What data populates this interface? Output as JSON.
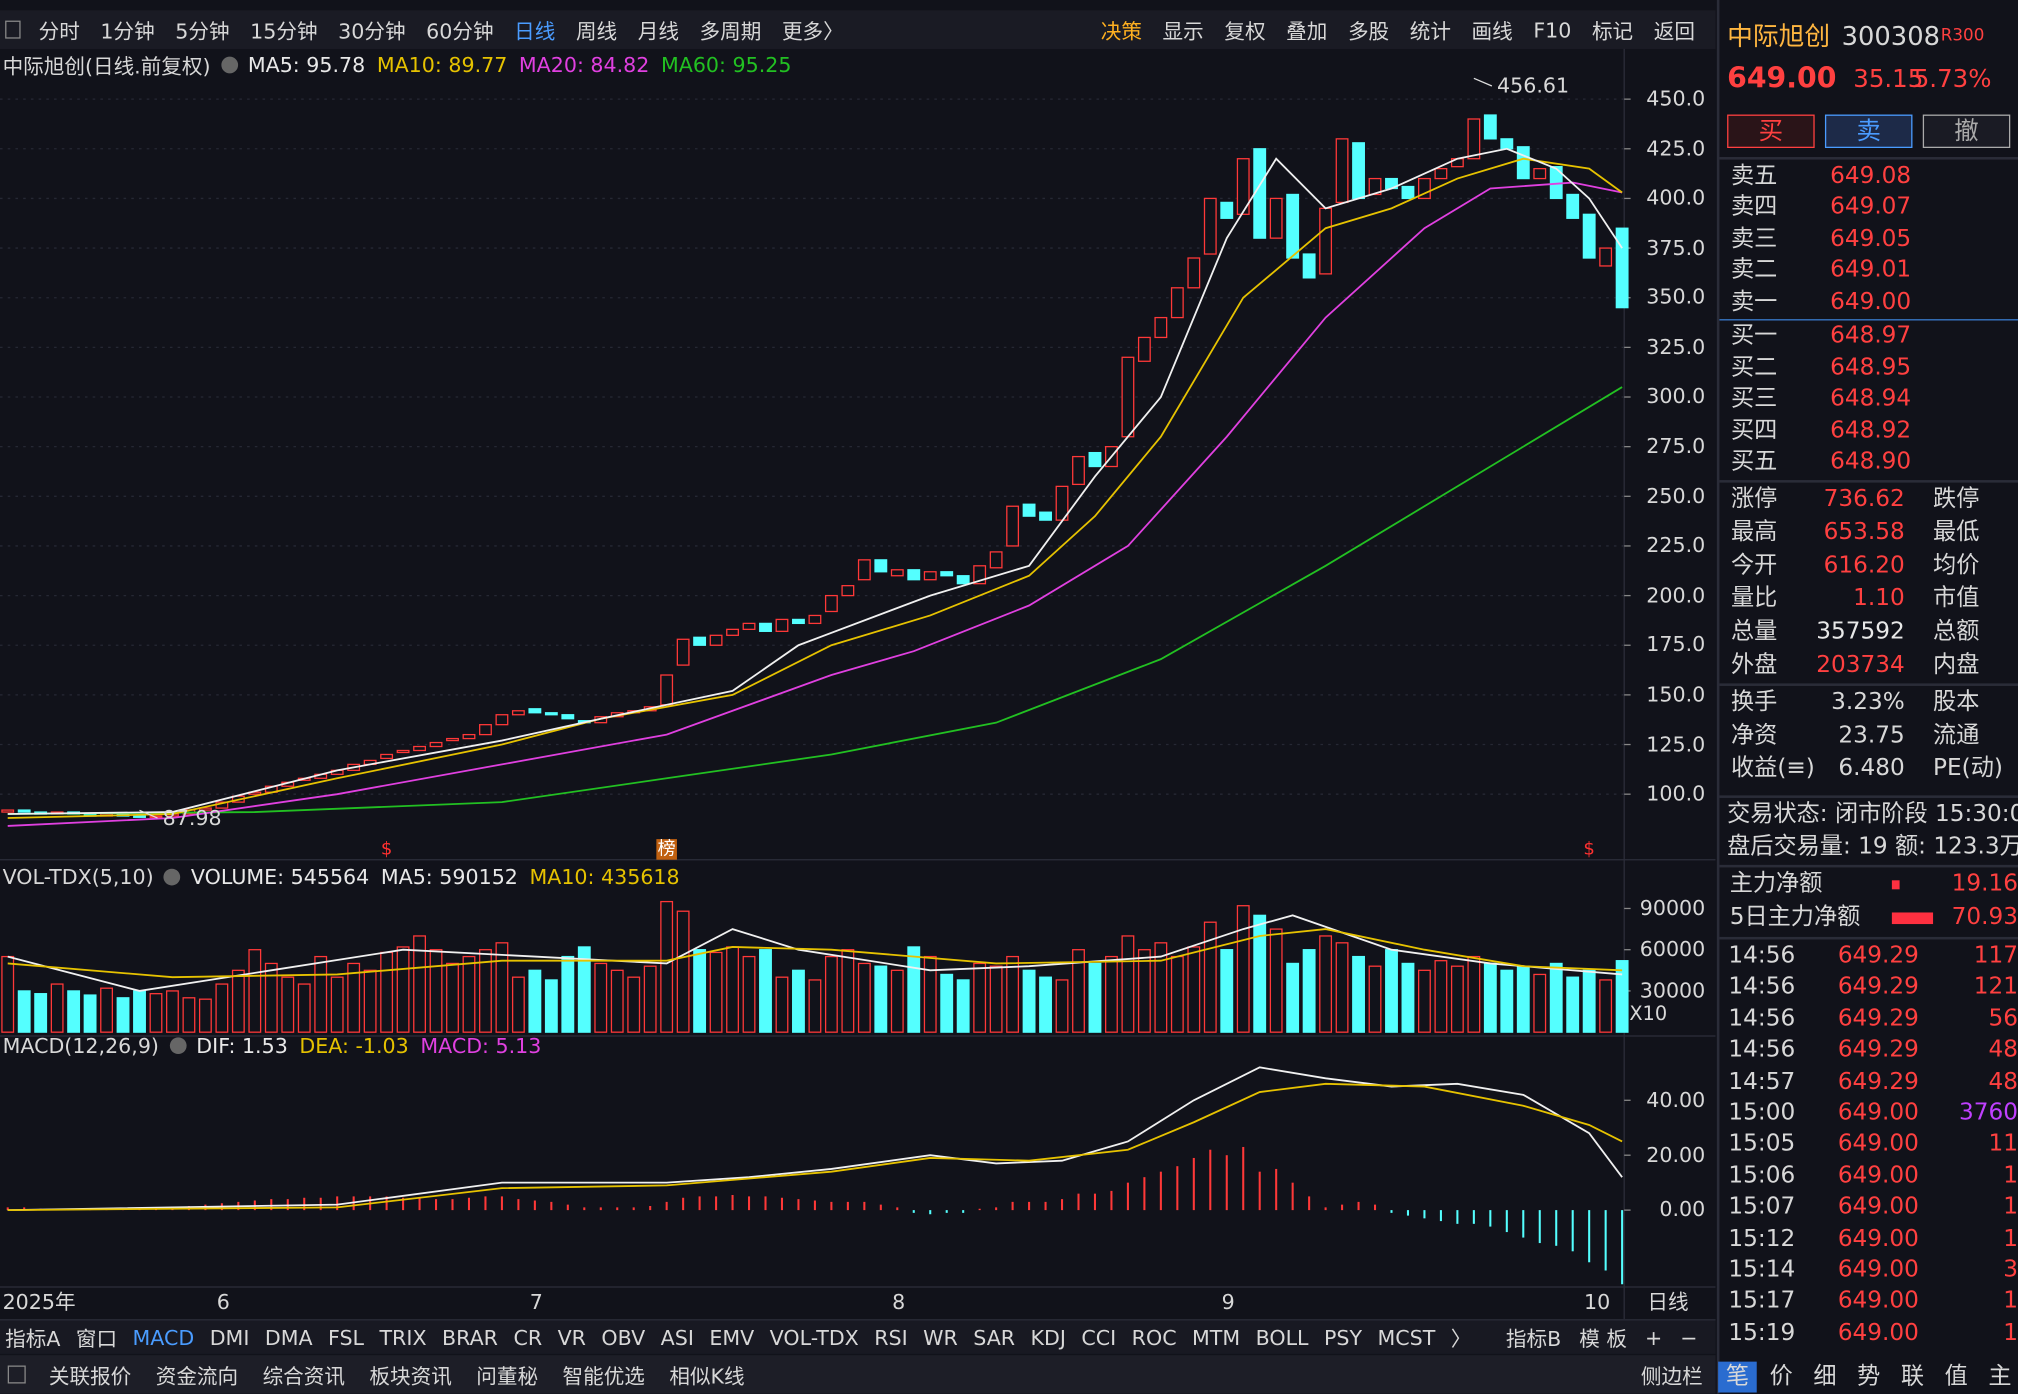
{
  "toolbar": {
    "periods": [
      "分时",
      "1分钟",
      "5分钟",
      "15分钟",
      "30分钟",
      "60分钟",
      "日线",
      "周线",
      "月线",
      "多周期",
      "更多〉"
    ],
    "tools": [
      "决策",
      "显示",
      "复权",
      "叠加",
      "多股",
      "统计",
      "画线",
      "F10",
      "标记",
      "返回"
    ]
  },
  "price_chart": {
    "title": "中际旭创(日线.前复权)",
    "indicators": [
      {
        "label": "MA5: 95.78",
        "color": "#e8e8e8"
      },
      {
        "label": "MA10: 89.77",
        "color": "#e6c200"
      },
      {
        "label": "MA20: 84.82",
        "color": "#e040e0"
      },
      {
        "label": "MA60: 95.25",
        "color": "#22c022"
      }
    ],
    "ylim": [
      67,
      474
    ],
    "yticks": [
      {
        "value": 100,
        "label": "100.0"
      },
      {
        "value": 125,
        "label": "125.0"
      },
      {
        "value": 150,
        "label": "150.0"
      },
      {
        "value": 175,
        "label": "175.0"
      },
      {
        "value": 200,
        "label": "200.0"
      },
      {
        "value": 225,
        "label": "225.0"
      },
      {
        "value": 250,
        "label": "250.0"
      },
      {
        "value": 275,
        "label": "275.0"
      },
      {
        "value": 300,
        "label": "300.0"
      },
      {
        "value": 325,
        "label": "325.0"
      },
      {
        "value": 350,
        "label": "350.0"
      },
      {
        "value": 375,
        "label": "375.0"
      },
      {
        "value": 400,
        "label": "400.0"
      },
      {
        "value": 425,
        "label": "425.0"
      },
      {
        "value": 450,
        "label": "450.0"
      }
    ],
    "xticks": [
      {
        "value": 0,
        "label": "2025年"
      },
      {
        "value": 13,
        "label": "6"
      },
      {
        "value": 32,
        "label": "7"
      },
      {
        "value": 54,
        "label": "8"
      },
      {
        "value": 74,
        "label": "9"
      },
      {
        "value": 96,
        "label": "10"
      }
    ],
    "period_label": "日线",
    "up_color": "#ff3838",
    "down_color": "#54ffff",
    "candles": {
      "open": [
        91,
        92,
        91,
        90,
        91,
        90,
        89,
        90,
        89,
        88.5,
        89,
        90,
        92,
        93,
        96,
        100,
        101,
        104,
        107,
        108,
        110,
        112,
        115,
        118,
        121,
        122,
        124,
        127,
        128,
        130,
        135,
        140,
        143,
        141,
        140,
        137,
        136,
        139,
        141,
        142,
        145,
        165,
        179,
        175,
        180,
        183,
        186,
        182,
        188,
        186,
        192,
        200,
        208,
        218,
        210,
        213,
        208,
        212,
        210,
        206,
        214,
        225,
        246,
        242,
        238,
        256,
        272,
        265,
        280,
        318,
        330,
        340,
        355,
        372,
        398,
        392,
        425,
        380,
        402,
        372,
        362,
        398,
        428,
        402,
        410,
        406,
        400,
        410,
        416,
        420,
        442,
        430,
        426,
        410,
        416,
        402,
        392,
        366,
        385
      ],
      "close": [
        92,
        91,
        90,
        91,
        90,
        89,
        90,
        89,
        88.5,
        89,
        90,
        92,
        93,
        96,
        99,
        101,
        104,
        106,
        108,
        110,
        112,
        115,
        117,
        120,
        122,
        124,
        126,
        128,
        130,
        135,
        140,
        142,
        141,
        140,
        138,
        136,
        139,
        141,
        142,
        144,
        160,
        178,
        175,
        180,
        183,
        186,
        182,
        188,
        186,
        190,
        200,
        205,
        218,
        212,
        213,
        208,
        212,
        210,
        206,
        215,
        222,
        245,
        240,
        238,
        255,
        270,
        265,
        275,
        320,
        330,
        340,
        355,
        370,
        400,
        390,
        420,
        380,
        400,
        370,
        360,
        395,
        430,
        400,
        410,
        405,
        400,
        410,
        415,
        420,
        440,
        430,
        425,
        410,
        415,
        400,
        390,
        370,
        375,
        345
      ]
    },
    "ma_lines": [
      {
        "color": "#22c022",
        "x": [
          0,
          15,
          30,
          40,
          50,
          60,
          70,
          80,
          90,
          98
        ],
        "values": [
          90,
          91,
          96,
          108,
          120,
          136,
          168,
          215,
          265,
          305
        ]
      },
      {
        "color": "#e040e0",
        "x": [
          0,
          10,
          20,
          30,
          40,
          50,
          55,
          62,
          68,
          74,
          80,
          86,
          90,
          95,
          98
        ],
        "values": [
          84,
          88,
          100,
          115,
          130,
          160,
          172,
          195,
          225,
          280,
          340,
          385,
          405,
          408,
          403
        ]
      },
      {
        "color": "#e6c200",
        "x": [
          0,
          10,
          20,
          30,
          36,
          44,
          50,
          56,
          62,
          66,
          70,
          75,
          80,
          84,
          88,
          92,
          96,
          98
        ],
        "values": [
          88,
          90,
          108,
          125,
          138,
          150,
          175,
          190,
          210,
          240,
          280,
          350,
          385,
          395,
          410,
          420,
          415,
          403
        ]
      },
      {
        "color": "#f0f0f0",
        "x": [
          0,
          10,
          20,
          30,
          36,
          44,
          48,
          56,
          62,
          66,
          70,
          74,
          77,
          80,
          84,
          88,
          91,
          94,
          96,
          98
        ],
        "values": [
          90,
          91,
          112,
          127,
          138,
          152,
          175,
          200,
          215,
          260,
          300,
          380,
          420,
          395,
          405,
          420,
          425,
          415,
          400,
          375
        ]
      }
    ],
    "annotations": [
      {
        "x": 89,
        "value": 456.61
      },
      {
        "x": 8,
        "value": 87.98
      }
    ],
    "markers": [
      {
        "x": 23,
        "label": "$"
      },
      {
        "x": 40,
        "label": "榜"
      },
      {
        "x": 96,
        "label": "$"
      }
    ]
  },
  "volume_chart": {
    "title": "VOL-TDX(5,10)",
    "indicators": [
      {
        "label": "VOLUME: 545564",
        "color": "#e8e8e8"
      },
      {
        "label": "MA5: 590152",
        "color": "#e8e8e8"
      },
      {
        "label": "MA10: 435618",
        "color": "#e6c200"
      }
    ],
    "ylim": [
      0,
      103000
    ],
    "yticks": [
      90000,
      60000,
      30000
    ],
    "multiplier": "X10",
    "values": [
      55000,
      30000,
      28000,
      35000,
      30000,
      27000,
      32000,
      25000,
      30000,
      28000,
      30000,
      25000,
      24000,
      35000,
      45000,
      60000,
      50000,
      40000,
      35000,
      55000,
      40000,
      50000,
      45000,
      58000,
      62000,
      70000,
      60000,
      50000,
      55000,
      60000,
      65000,
      40000,
      45000,
      38000,
      55000,
      62000,
      50000,
      45000,
      40000,
      48000,
      95000,
      88000,
      60000,
      58000,
      62000,
      55000,
      60000,
      40000,
      45000,
      38000,
      55000,
      60000,
      50000,
      48000,
      45000,
      62000,
      55000,
      42000,
      38000,
      50000,
      48000,
      55000,
      45000,
      40000,
      38000,
      60000,
      50000,
      55000,
      70000,
      60000,
      65000,
      55000,
      62000,
      80000,
      60000,
      92000,
      85000,
      75000,
      50000,
      60000,
      70000,
      65000,
      55000,
      48000,
      60000,
      50000,
      45000,
      52000,
      48000,
      55000,
      50000,
      45000,
      48000,
      42000,
      50000,
      40000,
      45000,
      38000,
      52000
    ],
    "ma_lines": [
      {
        "color": "#f0f0f0",
        "x": [
          0,
          8,
          16,
          24,
          32,
          40,
          44,
          48,
          56,
          62,
          70,
          75,
          78,
          84,
          90,
          98
        ],
        "values": [
          55000,
          30000,
          45000,
          60000,
          55000,
          50000,
          75000,
          60000,
          45000,
          48000,
          55000,
          75000,
          85000,
          60000,
          50000,
          42000
        ]
      },
      {
        "color": "#e6c200",
        "x": [
          0,
          10,
          20,
          30,
          40,
          44,
          50,
          60,
          70,
          76,
          80,
          86,
          92,
          98
        ],
        "values": [
          50000,
          40000,
          42000,
          52000,
          52000,
          62000,
          60000,
          50000,
          52000,
          70000,
          75000,
          60000,
          48000,
          45000
        ]
      }
    ]
  },
  "macd_chart": {
    "title": "MACD(12,26,9)",
    "indicators": [
      {
        "label": "DIF: 1.53",
        "color": "#e8e8e8"
      },
      {
        "label": "DEA: -1.03",
        "color": "#e6c200"
      },
      {
        "label": "MACD: 5.13",
        "color": "#e040e0"
      }
    ],
    "ylim": [
      -28,
      62
    ],
    "yticks": [
      {
        "value": 40,
        "label": "40.00"
      },
      {
        "value": 20,
        "label": "20.00"
      },
      {
        "value": 0,
        "label": "0.00"
      }
    ],
    "histogram": [
      1,
      1,
      0.5,
      0.5,
      0.3,
      0.2,
      0.3,
      0.5,
      0.6,
      0.8,
      1,
      1.5,
      2,
      2.5,
      3,
      3.5,
      4,
      4,
      4.5,
      4.5,
      5,
      5,
      5,
      5,
      4.5,
      4.5,
      4,
      4,
      4.5,
      5,
      5,
      4,
      3.5,
      3,
      2,
      1,
      1,
      1,
      1,
      1.5,
      3,
      4.5,
      5,
      5,
      5.5,
      5,
      5,
      4.5,
      4,
      3.5,
      3,
      3,
      3,
      2,
      1,
      -1,
      -1.5,
      -1,
      -1,
      0.5,
      1,
      3,
      3,
      3,
      4,
      6,
      6,
      7,
      10,
      12,
      14,
      16,
      19,
      22,
      20,
      23,
      14,
      15,
      10,
      5,
      1,
      2,
      3,
      2,
      -1,
      -2,
      -3,
      -4,
      -5,
      -5,
      -6,
      -8,
      -10,
      -12,
      -13,
      -15,
      -19,
      -22,
      -27
    ],
    "lines": [
      {
        "color": "#f0f0f0",
        "x": [
          0,
          20,
          30,
          40,
          45,
          50,
          56,
          60,
          64,
          68,
          72,
          76,
          80,
          84,
          88,
          92,
          96,
          98
        ],
        "values": [
          0,
          2,
          10,
          10,
          12,
          15,
          20,
          17,
          18,
          25,
          40,
          52,
          48,
          45,
          46,
          42,
          28,
          12
        ]
      },
      {
        "color": "#e6c200",
        "x": [
          0,
          20,
          30,
          40,
          50,
          56,
          62,
          68,
          72,
          76,
          80,
          86,
          92,
          96,
          98
        ],
        "values": [
          0,
          1,
          8,
          9,
          14,
          19,
          18,
          22,
          32,
          43,
          46,
          45,
          38,
          31,
          25
        ]
      }
    ]
  },
  "indicator_tabs": [
    "指标A",
    "窗口",
    "MACD",
    "DMI",
    "DMA",
    "FSL",
    "TRIX",
    "BRAR",
    "CR",
    "VR",
    "OBV",
    "ASI",
    "EMV",
    "VOL-TDX",
    "RSI",
    "WR",
    "SAR",
    "KDJ",
    "CCI",
    "ROC",
    "MTM",
    "BOLL",
    "PSY",
    "MCST",
    "〉"
  ],
  "indicator_tabs_right": [
    "指标B",
    "模 板",
    "+",
    "−"
  ],
  "status_bar": [
    "关联报价",
    "资金流向",
    "综合资讯",
    "板块资讯",
    "问董秘",
    "智能优选",
    "相似K线"
  ],
  "status_bar_right": "侧边栏",
  "quote": {
    "name": "中际旭创",
    "code": "300308",
    "badge": "R300",
    "price": "649.00",
    "change": "35.15",
    "change_pct": "5.73%",
    "buttons": [
      "买",
      "卖",
      "撤"
    ],
    "asks": [
      {
        "label": "卖五",
        "price": "649.08"
      },
      {
        "label": "卖四",
        "price": "649.07"
      },
      {
        "label": "卖三",
        "price": "649.05"
      },
      {
        "label": "卖二",
        "price": "649.01"
      },
      {
        "label": "卖一",
        "price": "649.00"
      }
    ],
    "bids": [
      {
        "label": "买一",
        "price": "648.97"
      },
      {
        "label": "买二",
        "price": "648.95"
      },
      {
        "label": "买三",
        "price": "648.94"
      },
      {
        "label": "买四",
        "price": "648.92"
      },
      {
        "label": "买五",
        "price": "648.90"
      }
    ],
    "stats": [
      {
        "label": "涨停",
        "value": "736.62",
        "color": "#ff4040",
        "label2": "跌停"
      },
      {
        "label": "最高",
        "value": "653.58",
        "color": "#ff4040",
        "label2": "最低"
      },
      {
        "label": "今开",
        "value": "616.20",
        "color": "#ff4040",
        "label2": "均价"
      },
      {
        "label": "量比",
        "value": "1.10",
        "color": "#ff4040",
        "label2": "市值"
      },
      {
        "label": "总量",
        "value": "357592",
        "color": "#e8e8e8",
        "label2": "总额"
      },
      {
        "label": "外盘",
        "value": "203734",
        "color": "#ff4040",
        "label2": "内盘"
      }
    ],
    "stats2": [
      {
        "label": "换手",
        "value": "3.23%",
        "label2": "股本"
      },
      {
        "label": "净资",
        "value": "23.75",
        "label2": "流通"
      },
      {
        "label": "收益(≡)",
        "value": "6.480",
        "label2": "PE(动)"
      }
    ],
    "trade_status": "交易状态: 闭市阶段 15:30:0",
    "after_hours": "盘后交易量: 19  额: 123.3万",
    "main_flow": {
      "label": "主力净额",
      "value": "19.16"
    },
    "main_flow_5d": {
      "label": "5日主力净额",
      "value": "70.93"
    },
    "trades": [
      {
        "time": "14:56",
        "price": "649.29",
        "volume": "117",
        "color": "#ff4040"
      },
      {
        "time": "14:56",
        "price": "649.29",
        "volume": "121",
        "color": "#ff4040"
      },
      {
        "time": "14:56",
        "price": "649.29",
        "volume": "56",
        "color": "#ff4040"
      },
      {
        "time": "14:56",
        "price": "649.29",
        "volume": "48",
        "color": "#ff4040"
      },
      {
        "time": "14:57",
        "price": "649.29",
        "volume": "48",
        "color": "#ff4040"
      },
      {
        "time": "15:00",
        "price": "649.00",
        "volume": "3760",
        "color": "#c040ff"
      },
      {
        "time": "15:05",
        "price": "649.00",
        "volume": "11",
        "color": "#ff4040"
      },
      {
        "time": "15:06",
        "price": "649.00",
        "volume": "1",
        "color": "#ff4040"
      },
      {
        "time": "15:07",
        "price": "649.00",
        "volume": "1",
        "color": "#ff4040"
      },
      {
        "time": "15:12",
        "price": "649.00",
        "volume": "1",
        "color": "#ff4040"
      },
      {
        "time": "15:14",
        "price": "649.00",
        "volume": "3",
        "color": "#ff4040"
      },
      {
        "time": "15:17",
        "price": "649.00",
        "volume": "1",
        "color": "#ff4040"
      },
      {
        "time": "15:19",
        "price": "649.00",
        "volume": "1",
        "color": "#ff4040"
      }
    ],
    "tabs": [
      "笔",
      "价",
      "细",
      "势",
      "联",
      "值",
      "主"
    ]
  }
}
